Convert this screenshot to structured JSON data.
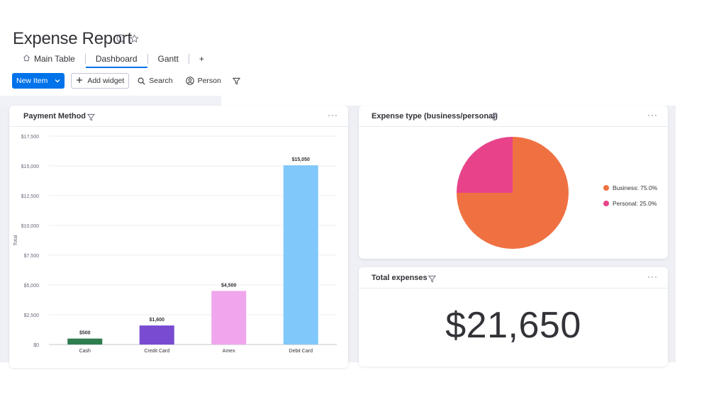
{
  "page": {
    "title": "Expense Report",
    "title_icons": [
      "info-icon",
      "star-icon"
    ]
  },
  "tabs": [
    {
      "label": "Main Table",
      "icon": "home-icon",
      "active": false
    },
    {
      "label": "Dashboard",
      "active": true
    },
    {
      "label": "Gantt",
      "active": false
    },
    {
      "label": "+",
      "active": false
    }
  ],
  "toolbar": {
    "new_item_label": "New Item",
    "add_widget_label": "Add widget",
    "search_label": "Search",
    "person_label": "Person"
  },
  "widgets": {
    "payment_method": {
      "title": "Payment Method",
      "more": "···"
    },
    "expense_type": {
      "title": "Expense type (business/personal)",
      "more": "···",
      "legend": [
        {
          "label": "Business: 75.0%",
          "color": "#ef7142"
        },
        {
          "label": "Personal: 25.0%",
          "color": "#e8438a"
        }
      ]
    },
    "total_expenses": {
      "title": "Total expenses",
      "more": "···",
      "value": "$21,650"
    }
  },
  "chart_data": [
    {
      "type": "bar",
      "categories": [
        "Cash",
        "Credit Card",
        "Amex",
        "Debit Card"
      ],
      "values": [
        500,
        1600,
        4500,
        15050
      ],
      "value_labels": [
        "$500",
        "$1,600",
        "$4,500",
        "$15,050"
      ],
      "colors": [
        "#2e7d4f",
        "#784bd1",
        "#f0a6ec",
        "#80c8fa"
      ],
      "ylabel": "Total",
      "ylim": [
        0,
        17500
      ],
      "y_ticks": [
        0,
        2500,
        5000,
        7500,
        10000,
        12500,
        15000,
        17500
      ],
      "y_tick_labels": [
        "$0",
        "$2,500",
        "$5,000",
        "$7,500",
        "$10,000",
        "$12,500",
        "$15,000",
        "$17,500"
      ],
      "grid": true
    },
    {
      "type": "pie",
      "labels": [
        "Business",
        "Personal"
      ],
      "values": [
        75.0,
        25.0
      ],
      "colors": [
        "#ef7142",
        "#e8438a"
      ],
      "legend": "right"
    }
  ]
}
